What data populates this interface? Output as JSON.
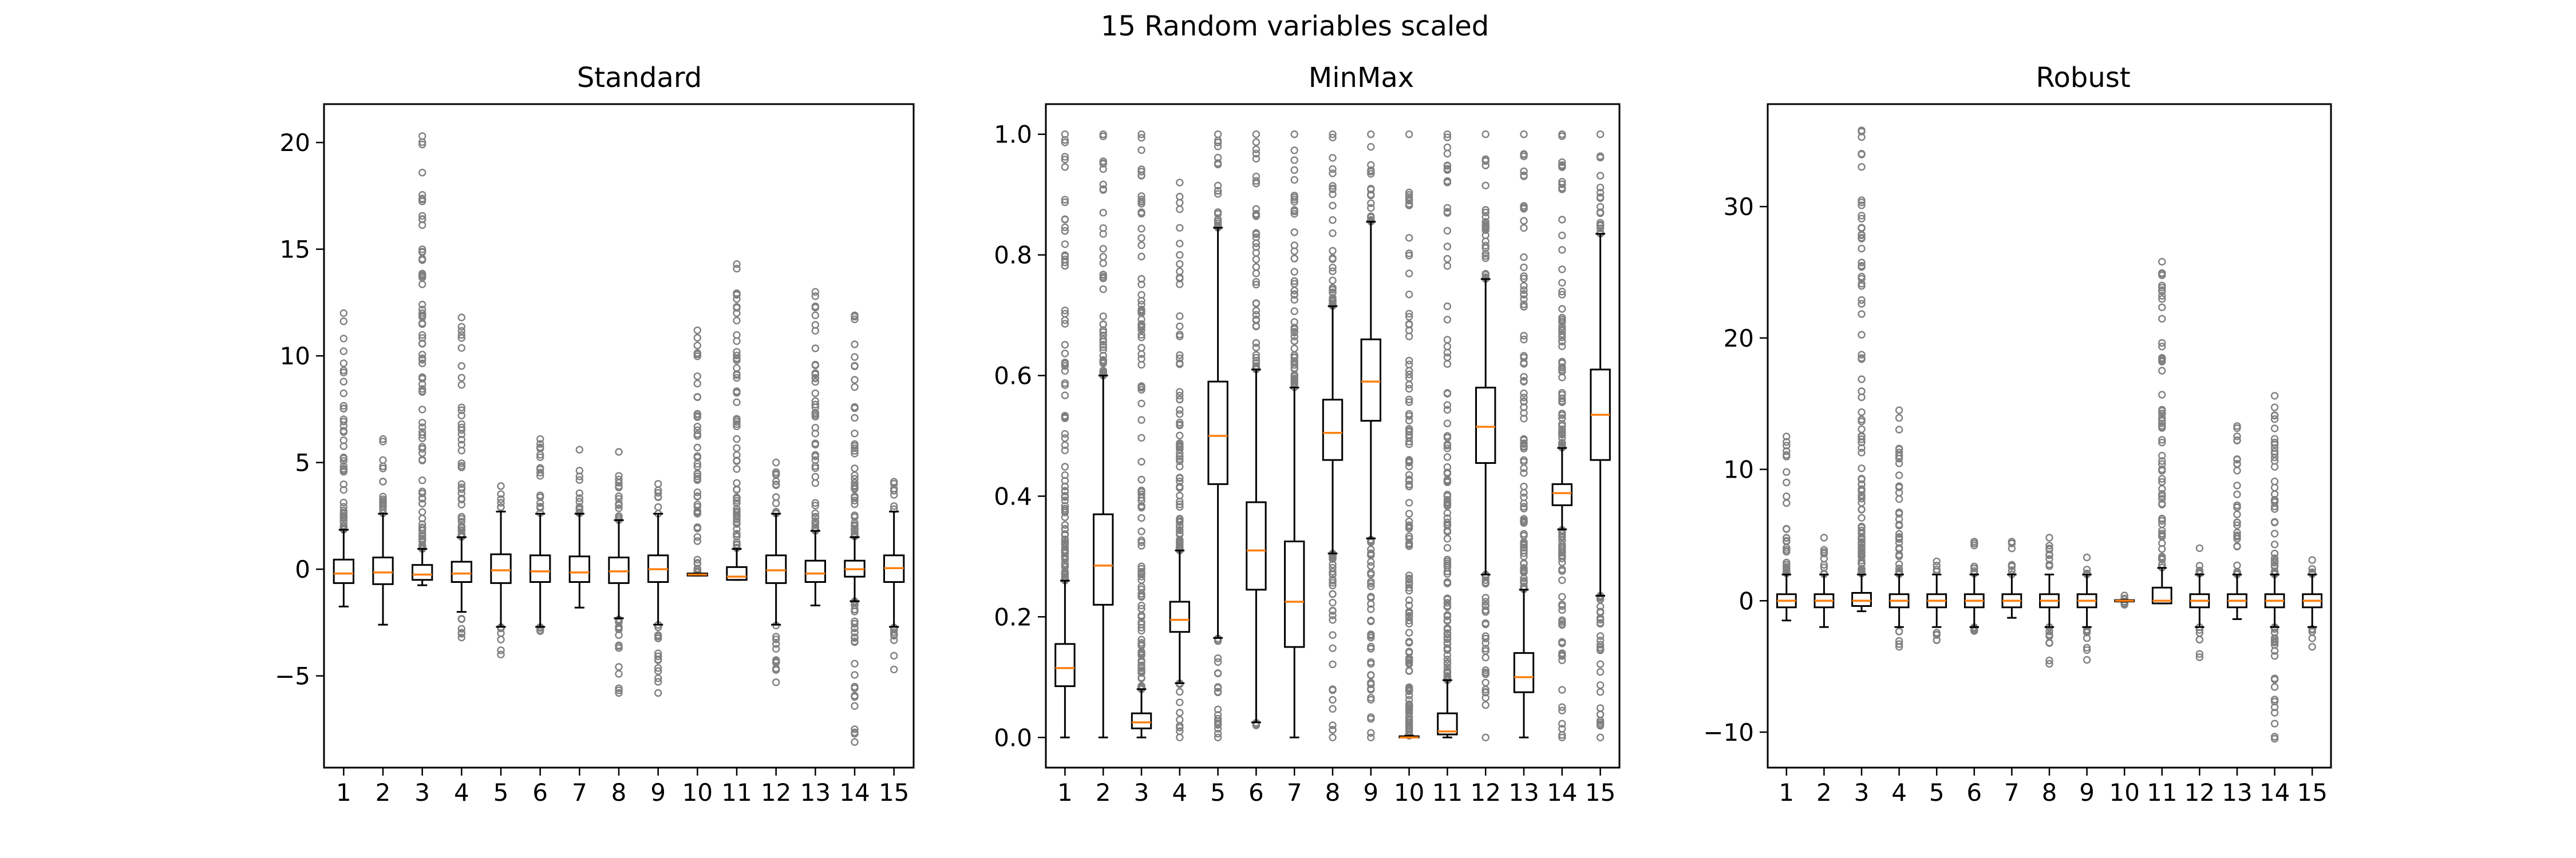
{
  "suptitle": "15 Random variables scaled",
  "colors": {
    "box": "#000000",
    "median": "#ff7f0e",
    "flier": "#808080",
    "frame": "#000000"
  },
  "chart_data": [
    {
      "type": "boxplot",
      "title": "Standard",
      "xlabel": "",
      "ylabel": "",
      "categories": [
        "1",
        "2",
        "3",
        "4",
        "5",
        "6",
        "7",
        "8",
        "9",
        "10",
        "11",
        "12",
        "13",
        "14",
        "15"
      ],
      "ylim": [
        -9.3,
        21.8
      ],
      "yticks": [
        -5,
        0,
        5,
        10,
        15,
        20
      ],
      "ytick_labels": [
        "−5",
        "0",
        "5",
        "10",
        "15",
        "20"
      ],
      "grid": false,
      "boxes": [
        {
          "q1": -0.65,
          "med": -0.2,
          "q3": 0.45,
          "wlo": -1.75,
          "whi": 1.85,
          "fmin": null,
          "fmax": 12.0
        },
        {
          "q1": -0.7,
          "med": -0.15,
          "q3": 0.55,
          "wlo": -2.6,
          "whi": 2.6,
          "fmin": null,
          "fmax": 6.1
        },
        {
          "q1": -0.5,
          "med": -0.25,
          "q3": 0.2,
          "wlo": -0.75,
          "whi": 0.95,
          "fmin": null,
          "fmax": 20.3
        },
        {
          "q1": -0.6,
          "med": -0.2,
          "q3": 0.35,
          "wlo": -2.0,
          "whi": 1.5,
          "fmin": -3.2,
          "fmax": 11.8
        },
        {
          "q1": -0.65,
          "med": -0.05,
          "q3": 0.7,
          "wlo": -2.7,
          "whi": 2.7,
          "fmin": -4.0,
          "fmax": 3.9
        },
        {
          "q1": -0.6,
          "med": -0.1,
          "q3": 0.65,
          "wlo": -2.7,
          "whi": 2.6,
          "fmin": -2.9,
          "fmax": 6.1
        },
        {
          "q1": -0.6,
          "med": -0.15,
          "q3": 0.6,
          "wlo": -1.8,
          "whi": 2.6,
          "fmin": null,
          "fmax": 5.6
        },
        {
          "q1": -0.65,
          "med": -0.1,
          "q3": 0.55,
          "wlo": -2.3,
          "whi": 2.3,
          "fmin": -5.8,
          "fmax": 5.5
        },
        {
          "q1": -0.6,
          "med": 0.0,
          "q3": 0.65,
          "wlo": -2.6,
          "whi": 2.6,
          "fmin": -5.8,
          "fmax": 4.0
        },
        {
          "q1": -0.3,
          "med": -0.25,
          "q3": -0.2,
          "wlo": -0.3,
          "whi": -0.2,
          "fmin": null,
          "fmax": 11.2
        },
        {
          "q1": -0.5,
          "med": -0.35,
          "q3": 0.1,
          "wlo": -0.5,
          "whi": 0.95,
          "fmin": null,
          "fmax": 14.3
        },
        {
          "q1": -0.65,
          "med": -0.05,
          "q3": 0.65,
          "wlo": -2.6,
          "whi": 2.6,
          "fmin": -5.3,
          "fmax": 5.0
        },
        {
          "q1": -0.6,
          "med": -0.2,
          "q3": 0.4,
          "wlo": -1.7,
          "whi": 1.8,
          "fmin": null,
          "fmax": 13.0
        },
        {
          "q1": -0.35,
          "med": 0.0,
          "q3": 0.4,
          "wlo": -1.5,
          "whi": 1.5,
          "fmin": -8.1,
          "fmax": 11.9
        },
        {
          "q1": -0.6,
          "med": 0.05,
          "q3": 0.65,
          "wlo": -2.7,
          "whi": 2.7,
          "fmin": -4.7,
          "fmax": 4.1
        }
      ]
    },
    {
      "type": "boxplot",
      "title": "MinMax",
      "xlabel": "",
      "ylabel": "",
      "categories": [
        "1",
        "2",
        "3",
        "4",
        "5",
        "6",
        "7",
        "8",
        "9",
        "10",
        "11",
        "12",
        "13",
        "14",
        "15"
      ],
      "ylim": [
        -0.05,
        1.05
      ],
      "yticks": [
        0.0,
        0.2,
        0.4,
        0.6,
        0.8,
        1.0
      ],
      "ytick_labels": [
        "0.0",
        "0.2",
        "0.4",
        "0.6",
        "0.8",
        "1.0"
      ],
      "grid": false,
      "boxes": [
        {
          "q1": 0.085,
          "med": 0.115,
          "q3": 0.155,
          "wlo": 0.0,
          "whi": 0.26,
          "fmin": null,
          "fmax": 1.0
        },
        {
          "q1": 0.22,
          "med": 0.285,
          "q3": 0.37,
          "wlo": 0.0,
          "whi": 0.6,
          "fmin": null,
          "fmax": 1.0
        },
        {
          "q1": 0.015,
          "med": 0.025,
          "q3": 0.04,
          "wlo": 0.0,
          "whi": 0.08,
          "fmin": null,
          "fmax": 1.0
        },
        {
          "q1": 0.175,
          "med": 0.195,
          "q3": 0.225,
          "wlo": 0.09,
          "whi": 0.31,
          "fmin": 0.0,
          "fmax": 0.92
        },
        {
          "q1": 0.42,
          "med": 0.5,
          "q3": 0.59,
          "wlo": 0.165,
          "whi": 0.845,
          "fmin": 0.0,
          "fmax": 1.0
        },
        {
          "q1": 0.245,
          "med": 0.31,
          "q3": 0.39,
          "wlo": 0.025,
          "whi": 0.61,
          "fmin": 0.02,
          "fmax": 1.0
        },
        {
          "q1": 0.15,
          "med": 0.225,
          "q3": 0.325,
          "wlo": 0.0,
          "whi": 0.58,
          "fmin": null,
          "fmax": 1.0
        },
        {
          "q1": 0.46,
          "med": 0.505,
          "q3": 0.56,
          "wlo": 0.305,
          "whi": 0.715,
          "fmin": 0.0,
          "fmax": 1.0
        },
        {
          "q1": 0.525,
          "med": 0.59,
          "q3": 0.66,
          "wlo": 0.33,
          "whi": 0.855,
          "fmin": 0.0,
          "fmax": 1.0
        },
        {
          "q1": 0.0,
          "med": 0.0,
          "q3": 0.002,
          "wlo": 0.0,
          "whi": 0.003,
          "fmin": null,
          "fmax": 1.0
        },
        {
          "q1": 0.005,
          "med": 0.01,
          "q3": 0.04,
          "wlo": 0.0,
          "whi": 0.095,
          "fmin": null,
          "fmax": 1.0
        },
        {
          "q1": 0.455,
          "med": 0.515,
          "q3": 0.58,
          "wlo": 0.27,
          "whi": 0.76,
          "fmin": 0.0,
          "fmax": 1.0
        },
        {
          "q1": 0.075,
          "med": 0.1,
          "q3": 0.14,
          "wlo": 0.0,
          "whi": 0.245,
          "fmin": null,
          "fmax": 1.0
        },
        {
          "q1": 0.385,
          "med": 0.405,
          "q3": 0.42,
          "wlo": 0.345,
          "whi": 0.48,
          "fmin": 0.0,
          "fmax": 1.0
        },
        {
          "q1": 0.46,
          "med": 0.535,
          "q3": 0.61,
          "wlo": 0.235,
          "whi": 0.835,
          "fmin": 0.0,
          "fmax": 1.0
        }
      ]
    },
    {
      "type": "boxplot",
      "title": "Robust",
      "xlabel": "",
      "ylabel": "",
      "categories": [
        "1",
        "2",
        "3",
        "4",
        "5",
        "6",
        "7",
        "8",
        "9",
        "10",
        "11",
        "12",
        "13",
        "14",
        "15"
      ],
      "ylim": [
        -12.7,
        37.8
      ],
      "yticks": [
        -10,
        0,
        10,
        20,
        30
      ],
      "ytick_labels": [
        "−10",
        "0",
        "10",
        "20",
        "30"
      ],
      "grid": false,
      "boxes": [
        {
          "q1": -0.5,
          "med": 0.0,
          "q3": 0.5,
          "wlo": -1.5,
          "whi": 2.0,
          "fmin": null,
          "fmax": 12.5
        },
        {
          "q1": -0.5,
          "med": 0.0,
          "q3": 0.5,
          "wlo": -2.0,
          "whi": 2.0,
          "fmin": null,
          "fmax": 4.8
        },
        {
          "q1": -0.4,
          "med": 0.0,
          "q3": 0.6,
          "wlo": -0.8,
          "whi": 2.0,
          "fmin": null,
          "fmax": 35.8
        },
        {
          "q1": -0.5,
          "med": 0.0,
          "q3": 0.5,
          "wlo": -2.0,
          "whi": 2.0,
          "fmin": -3.5,
          "fmax": 14.5
        },
        {
          "q1": -0.5,
          "med": 0.0,
          "q3": 0.5,
          "wlo": -2.0,
          "whi": 2.0,
          "fmin": -3.0,
          "fmax": 3.0
        },
        {
          "q1": -0.5,
          "med": 0.0,
          "q3": 0.5,
          "wlo": -2.0,
          "whi": 2.0,
          "fmin": -2.3,
          "fmax": 4.5
        },
        {
          "q1": -0.5,
          "med": 0.0,
          "q3": 0.5,
          "wlo": -1.3,
          "whi": 2.0,
          "fmin": null,
          "fmax": 4.5
        },
        {
          "q1": -0.5,
          "med": 0.0,
          "q3": 0.5,
          "wlo": -2.0,
          "whi": 2.0,
          "fmin": -4.8,
          "fmax": 4.8
        },
        {
          "q1": -0.5,
          "med": 0.0,
          "q3": 0.5,
          "wlo": -2.0,
          "whi": 2.0,
          "fmin": -4.5,
          "fmax": 3.3
        },
        {
          "q1": -0.05,
          "med": 0.0,
          "q3": 0.05,
          "wlo": -0.05,
          "whi": 0.05,
          "fmin": -0.3,
          "fmax": 0.4
        },
        {
          "q1": -0.2,
          "med": 0.0,
          "q3": 1.0,
          "wlo": -0.2,
          "whi": 2.5,
          "fmin": null,
          "fmax": 25.8
        },
        {
          "q1": -0.5,
          "med": 0.0,
          "q3": 0.5,
          "wlo": -2.0,
          "whi": 2.0,
          "fmin": -4.3,
          "fmax": 4.0
        },
        {
          "q1": -0.5,
          "med": 0.0,
          "q3": 0.5,
          "wlo": -1.4,
          "whi": 2.0,
          "fmin": null,
          "fmax": 13.3
        },
        {
          "q1": -0.5,
          "med": 0.0,
          "q3": 0.5,
          "wlo": -2.0,
          "whi": 2.0,
          "fmin": -10.5,
          "fmax": 15.6
        },
        {
          "q1": -0.5,
          "med": 0.0,
          "q3": 0.5,
          "wlo": -2.0,
          "whi": 2.0,
          "fmin": -3.5,
          "fmax": 3.1
        }
      ]
    }
  ]
}
